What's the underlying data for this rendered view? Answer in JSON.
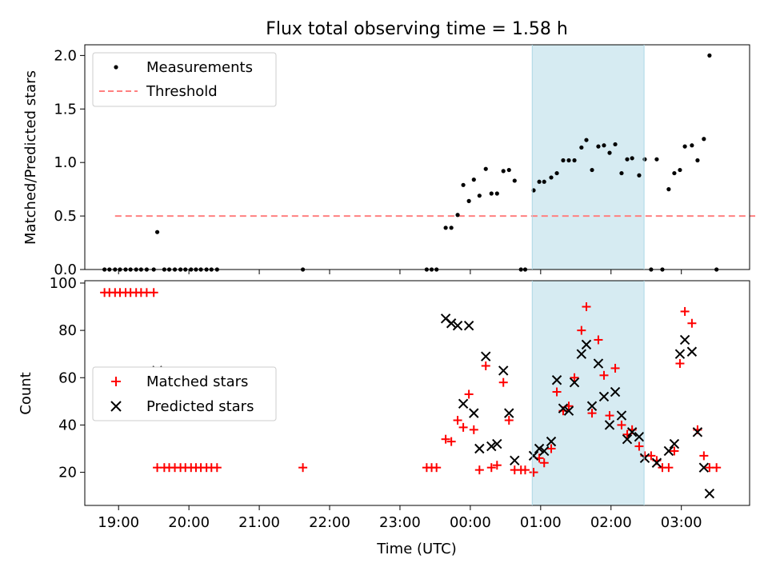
{
  "figure": {
    "title": "Flux total observing time = 1.58 h"
  },
  "colors": {
    "measurement": "#000000",
    "threshold": "#ff8080",
    "matched": "#ff0000",
    "predicted": "#000000",
    "highlight": "#add8e6"
  },
  "chart_data": [
    {
      "type": "scatter",
      "panel": "top",
      "title": "Flux total observing time = 1.58 h",
      "xlabel": "",
      "ylabel": "Matched/Predicted stars",
      "x_unit": "hours since 18:00 UTC",
      "xlim": [
        0.52,
        9.97
      ],
      "ylim": [
        0,
        2.1
      ],
      "yticks": [
        0.0,
        0.5,
        1.0,
        1.5,
        2.0
      ],
      "ytick_labels": [
        "0.0",
        "0.5",
        "1.0",
        "1.5",
        "2.0"
      ],
      "highlight_span": [
        6.88,
        8.47
      ],
      "legend": {
        "position": "upper-left",
        "entries": [
          "Measurements",
          "Threshold"
        ]
      },
      "threshold": {
        "name": "Threshold",
        "y": 0.5,
        "x_range": [
          0.95,
          10.05
        ]
      },
      "series": [
        {
          "name": "Measurements",
          "points": [
            [
              0.8,
              0
            ],
            [
              0.87,
              0
            ],
            [
              0.95,
              0
            ],
            [
              1.02,
              0
            ],
            [
              1.1,
              0
            ],
            [
              1.17,
              0
            ],
            [
              1.25,
              0
            ],
            [
              1.32,
              0
            ],
            [
              1.4,
              0
            ],
            [
              1.5,
              0
            ],
            [
              1.55,
              0.35
            ],
            [
              1.65,
              0
            ],
            [
              1.72,
              0
            ],
            [
              1.8,
              0
            ],
            [
              1.88,
              0
            ],
            [
              1.95,
              0
            ],
            [
              2.03,
              0
            ],
            [
              2.1,
              0
            ],
            [
              2.17,
              0
            ],
            [
              2.25,
              0
            ],
            [
              2.32,
              0
            ],
            [
              2.4,
              0
            ],
            [
              3.62,
              0
            ],
            [
              5.38,
              0
            ],
            [
              5.45,
              0
            ],
            [
              5.52,
              0
            ],
            [
              5.65,
              0.39
            ],
            [
              5.73,
              0.39
            ],
            [
              5.82,
              0.51
            ],
            [
              5.9,
              0.79
            ],
            [
              5.98,
              0.64
            ],
            [
              6.05,
              0.84
            ],
            [
              6.13,
              0.69
            ],
            [
              6.22,
              0.94
            ],
            [
              6.3,
              0.71
            ],
            [
              6.38,
              0.71
            ],
            [
              6.47,
              0.92
            ],
            [
              6.55,
              0.93
            ],
            [
              6.63,
              0.83
            ],
            [
              6.72,
              0
            ],
            [
              6.78,
              0
            ],
            [
              6.9,
              0.74
            ],
            [
              6.98,
              0.82
            ],
            [
              7.05,
              0.82
            ],
            [
              7.15,
              0.86
            ],
            [
              7.23,
              0.9
            ],
            [
              7.32,
              1.02
            ],
            [
              7.4,
              1.02
            ],
            [
              7.48,
              1.02
            ],
            [
              7.58,
              1.14
            ],
            [
              7.65,
              1.21
            ],
            [
              7.73,
              0.93
            ],
            [
              7.82,
              1.15
            ],
            [
              7.9,
              1.16
            ],
            [
              7.98,
              1.09
            ],
            [
              8.06,
              1.17
            ],
            [
              8.15,
              0.9
            ],
            [
              8.23,
              1.03
            ],
            [
              8.3,
              1.04
            ],
            [
              8.4,
              0.88
            ],
            [
              8.48,
              1.03
            ],
            [
              8.57,
              0
            ],
            [
              8.65,
              1.03
            ],
            [
              8.73,
              0
            ],
            [
              8.82,
              0.75
            ],
            [
              8.9,
              0.9
            ],
            [
              8.98,
              0.93
            ],
            [
              9.05,
              1.15
            ],
            [
              9.15,
              1.16
            ],
            [
              9.23,
              1.02
            ],
            [
              9.32,
              1.22
            ],
            [
              9.4,
              2.0
            ],
            [
              9.5,
              0
            ]
          ]
        }
      ]
    },
    {
      "type": "scatter",
      "panel": "bottom",
      "xlabel": "Time (UTC)",
      "ylabel": "Count",
      "x_unit": "hours since 18:00 UTC",
      "xlim": [
        0.52,
        9.97
      ],
      "ylim": [
        6,
        101
      ],
      "xticks": [
        1,
        2,
        3,
        4,
        5,
        6,
        7,
        8,
        9
      ],
      "xtick_labels": [
        "19:00",
        "20:00",
        "21:00",
        "22:00",
        "23:00",
        "00:00",
        "01:00",
        "02:00",
        "03:00"
      ],
      "yticks": [
        20,
        40,
        60,
        80,
        100
      ],
      "ytick_labels": [
        "20",
        "40",
        "60",
        "80",
        "100"
      ],
      "highlight_span": [
        6.88,
        8.47
      ],
      "legend": {
        "position": "center-left",
        "entries": [
          "Matched stars",
          "Predicted stars"
        ]
      },
      "series": [
        {
          "name": "Matched stars",
          "marker": "+",
          "points": [
            [
              0.8,
              96
            ],
            [
              0.87,
              96
            ],
            [
              0.95,
              96
            ],
            [
              1.02,
              96
            ],
            [
              1.1,
              96
            ],
            [
              1.17,
              96
            ],
            [
              1.25,
              96
            ],
            [
              1.32,
              96
            ],
            [
              1.4,
              96
            ],
            [
              1.5,
              96
            ],
            [
              1.55,
              22
            ],
            [
              1.65,
              22
            ],
            [
              1.72,
              22
            ],
            [
              1.8,
              22
            ],
            [
              1.88,
              22
            ],
            [
              1.95,
              22
            ],
            [
              2.03,
              22
            ],
            [
              2.1,
              22
            ],
            [
              2.17,
              22
            ],
            [
              2.25,
              22
            ],
            [
              2.32,
              22
            ],
            [
              2.4,
              22
            ],
            [
              3.62,
              22
            ],
            [
              5.38,
              22
            ],
            [
              5.45,
              22
            ],
            [
              5.52,
              22
            ],
            [
              5.65,
              34
            ],
            [
              5.73,
              33
            ],
            [
              5.82,
              42
            ],
            [
              5.9,
              39
            ],
            [
              5.98,
              53
            ],
            [
              6.05,
              38
            ],
            [
              6.13,
              21
            ],
            [
              6.22,
              65
            ],
            [
              6.3,
              22
            ],
            [
              6.38,
              23
            ],
            [
              6.47,
              58
            ],
            [
              6.55,
              42
            ],
            [
              6.63,
              21
            ],
            [
              6.72,
              21
            ],
            [
              6.78,
              21
            ],
            [
              6.9,
              20
            ],
            [
              6.98,
              26
            ],
            [
              7.05,
              24
            ],
            [
              7.15,
              30
            ],
            [
              7.23,
              54
            ],
            [
              7.32,
              46
            ],
            [
              7.4,
              48
            ],
            [
              7.48,
              60
            ],
            [
              7.58,
              80
            ],
            [
              7.65,
              90
            ],
            [
              7.73,
              45
            ],
            [
              7.82,
              76
            ],
            [
              7.9,
              61
            ],
            [
              7.98,
              44
            ],
            [
              8.06,
              64
            ],
            [
              8.15,
              40
            ],
            [
              8.23,
              36
            ],
            [
              8.3,
              38
            ],
            [
              8.4,
              31
            ],
            [
              8.48,
              27
            ],
            [
              8.57,
              27
            ],
            [
              8.65,
              25
            ],
            [
              8.73,
              22
            ],
            [
              8.82,
              22
            ],
            [
              8.9,
              29
            ],
            [
              8.98,
              66
            ],
            [
              9.05,
              88
            ],
            [
              9.15,
              83
            ],
            [
              9.23,
              38
            ],
            [
              9.32,
              27
            ],
            [
              9.4,
              22
            ],
            [
              9.5,
              22
            ]
          ]
        },
        {
          "name": "Predicted stars",
          "marker": "x",
          "points": [
            [
              1.55,
              63
            ],
            [
              5.65,
              85
            ],
            [
              5.73,
              83
            ],
            [
              5.82,
              82
            ],
            [
              5.9,
              49
            ],
            [
              5.98,
              82
            ],
            [
              6.05,
              45
            ],
            [
              6.13,
              30
            ],
            [
              6.22,
              69
            ],
            [
              6.3,
              31
            ],
            [
              6.38,
              32
            ],
            [
              6.47,
              63
            ],
            [
              6.55,
              45
            ],
            [
              6.63,
              25
            ],
            [
              6.9,
              27
            ],
            [
              6.98,
              30
            ],
            [
              7.05,
              29
            ],
            [
              7.15,
              33
            ],
            [
              7.23,
              59
            ],
            [
              7.32,
              47
            ],
            [
              7.4,
              46
            ],
            [
              7.48,
              58
            ],
            [
              7.58,
              70
            ],
            [
              7.65,
              74
            ],
            [
              7.73,
              48
            ],
            [
              7.82,
              66
            ],
            [
              7.9,
              52
            ],
            [
              7.98,
              40
            ],
            [
              8.06,
              54
            ],
            [
              8.15,
              44
            ],
            [
              8.23,
              34
            ],
            [
              8.3,
              37
            ],
            [
              8.4,
              35
            ],
            [
              8.48,
              26
            ],
            [
              8.65,
              24
            ],
            [
              8.82,
              29
            ],
            [
              8.9,
              32
            ],
            [
              8.98,
              70
            ],
            [
              9.05,
              76
            ],
            [
              9.15,
              71
            ],
            [
              9.23,
              37
            ],
            [
              9.32,
              22
            ],
            [
              9.4,
              11
            ]
          ]
        }
      ]
    }
  ]
}
